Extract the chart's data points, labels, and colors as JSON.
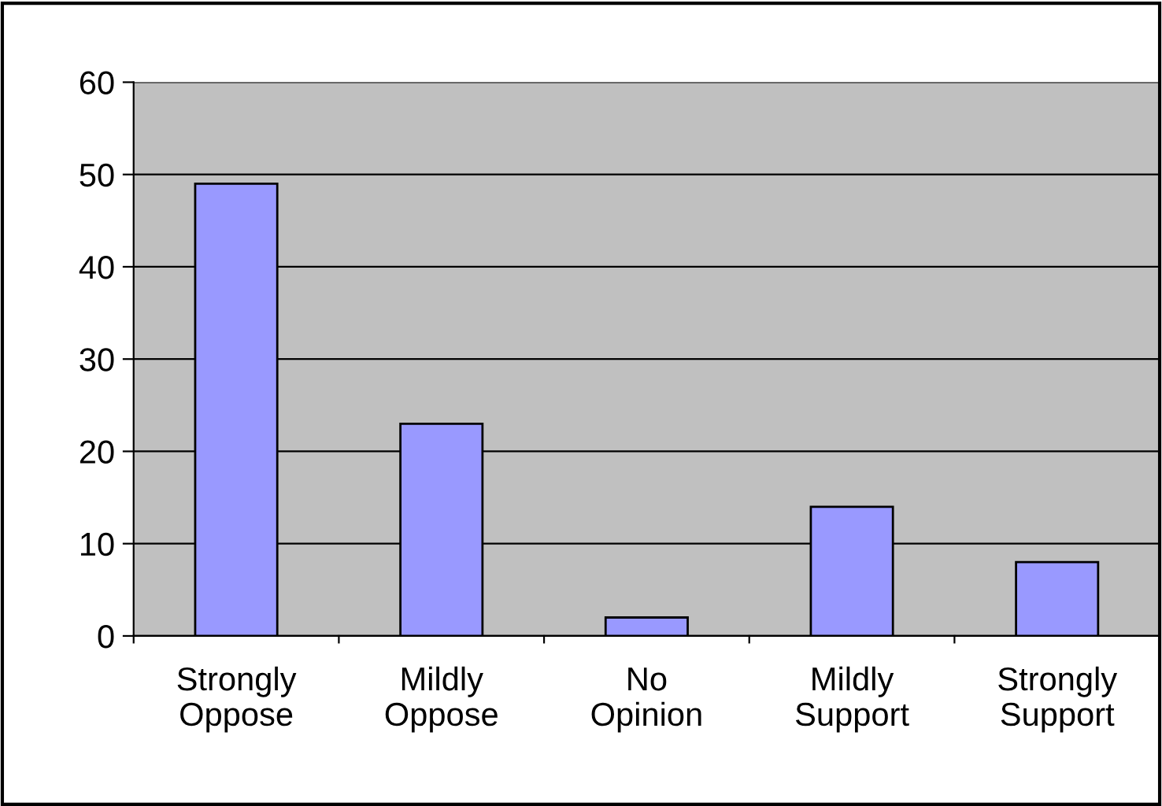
{
  "chart_data": {
    "type": "bar",
    "categories": [
      "Strongly Oppose",
      "Mildly Oppose",
      "No Opinion",
      "Mildly Support",
      "Strongly Support"
    ],
    "values": [
      49,
      23,
      2,
      14,
      8
    ],
    "color": "#9999ff",
    "ylim": [
      0,
      60
    ],
    "yticks": [
      0,
      10,
      20,
      30,
      40,
      50,
      60
    ],
    "grid": "y",
    "legend": false
  }
}
